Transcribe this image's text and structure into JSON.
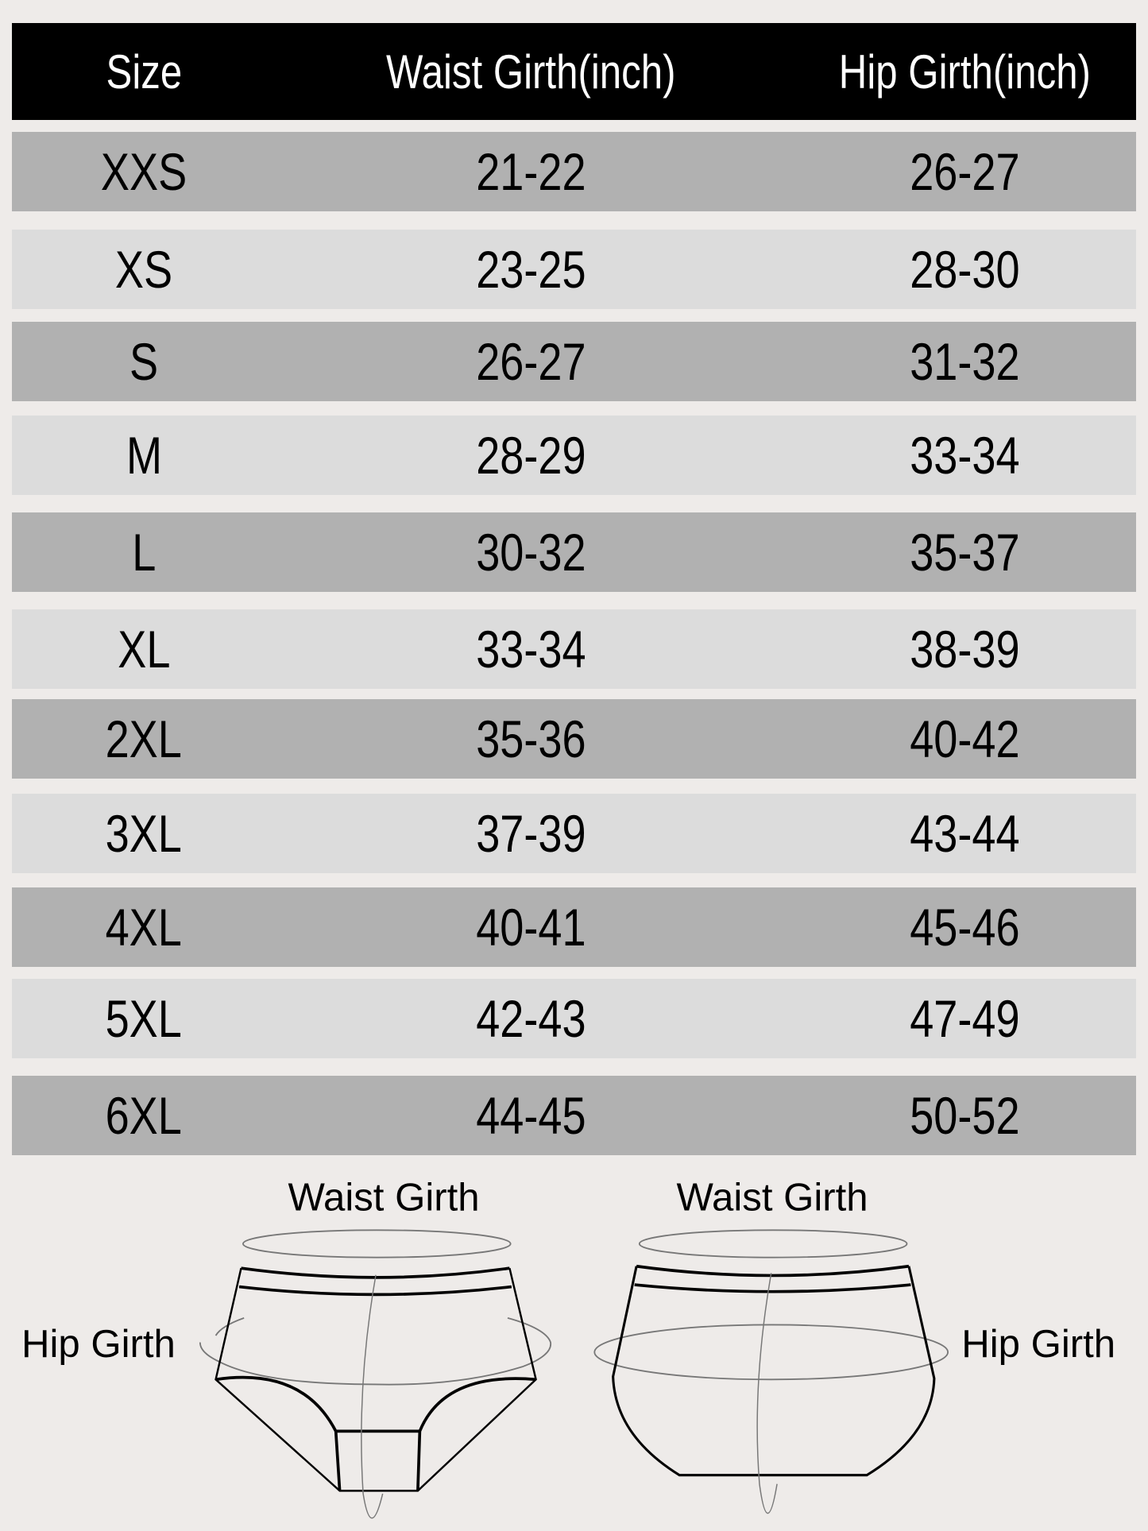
{
  "table": {
    "headers": [
      "Size",
      "Waist Girth(inch)",
      "Hip Girth(inch)"
    ],
    "rows": [
      [
        "XXS",
        "21-22",
        "26-27"
      ],
      [
        "XS",
        "23-25",
        "28-30"
      ],
      [
        "S",
        "26-27",
        "31-32"
      ],
      [
        "M",
        "28-29",
        "33-34"
      ],
      [
        "L",
        "30-32",
        "35-37"
      ],
      [
        "XL",
        "33-34",
        "38-39"
      ],
      [
        "2XL",
        "35-36",
        "40-42"
      ],
      [
        "3XL",
        "37-39",
        "43-44"
      ],
      [
        "4XL",
        "40-41",
        "45-46"
      ],
      [
        "5XL",
        "42-43",
        "47-49"
      ],
      [
        "6XL",
        "44-45",
        "50-52"
      ]
    ]
  },
  "diagram": {
    "left": {
      "waist_label": "Waist Girth",
      "hip_label": "Hip Girth"
    },
    "right": {
      "waist_label": "Waist Girth",
      "hip_label": "Hip Girth"
    }
  },
  "colors": {
    "header_bg": "#000000",
    "row_dark": "#b1b1b1",
    "row_light": "#dcdcdc",
    "background": "#eeebe9"
  }
}
